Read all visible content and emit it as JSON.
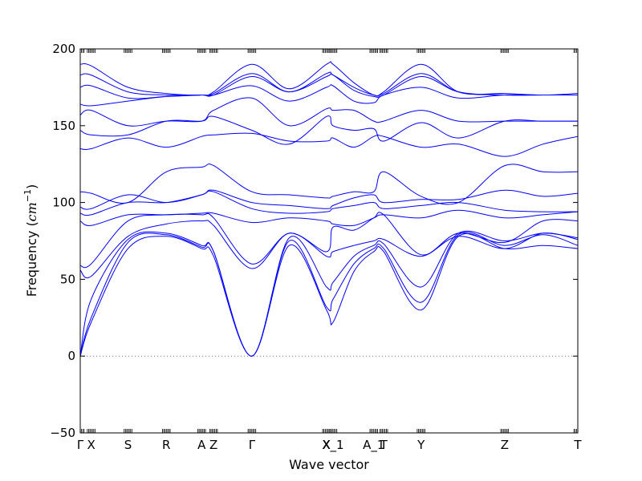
{
  "chart_data": {
    "type": "line",
    "title": "",
    "xlabel": "Wave vector",
    "ylabel": "Frequency",
    "ylabel_unit": "cm",
    "ylabel_unit_exp": "−1",
    "ylim": [
      -50,
      200
    ],
    "yticks": [
      -50,
      0,
      50,
      100,
      150,
      200
    ],
    "ytick_labels": [
      "−50",
      "0",
      "50",
      "100",
      "150",
      "200"
    ],
    "zero_line": true,
    "grid": false,
    "legend": "none",
    "line_color": "#0000ff",
    "zero_line_color": "#777777",
    "xlim": [
      0,
      1
    ],
    "high_symmetry_points": [
      {
        "label": "Γ",
        "x": 0.0
      },
      {
        "label": "X",
        "x": 0.022
      },
      {
        "label": "S",
        "x": 0.096
      },
      {
        "label": "R",
        "x": 0.173
      },
      {
        "label": "A",
        "x": 0.244
      },
      {
        "label": "Z",
        "x": 0.268
      },
      {
        "label": "Γ",
        "x": 0.345
      },
      {
        "label": "X",
        "x": 0.495
      },
      {
        "label": "X_1",
        "x": 0.508
      },
      {
        "label": "A_1",
        "x": 0.59
      },
      {
        "label": "T",
        "x": 0.61
      },
      {
        "label": "Y",
        "x": 0.685
      },
      {
        "label": "Z",
        "x": 0.853
      },
      {
        "label": "T",
        "x": 1.0
      }
    ],
    "series": [
      {
        "x": [
          0,
          0.022,
          0.096,
          0.173,
          0.244,
          0.268,
          0.345,
          0.42,
          0.495,
          0.508,
          0.55,
          0.59,
          0.61,
          0.685,
          0.76,
          0.853,
          0.93,
          1.0
        ],
        "values": [
          0,
          22,
          70,
          78,
          70,
          65,
          0,
          72,
          30,
          22,
          55,
          68,
          68,
          30,
          78,
          70,
          72,
          70
        ]
      },
      {
        "x": [
          0,
          0.022,
          0.096,
          0.173,
          0.244,
          0.268,
          0.345,
          0.42,
          0.495,
          0.508,
          0.55,
          0.59,
          0.61,
          0.685,
          0.76,
          0.853,
          0.93,
          1.0
        ],
        "values": [
          0,
          25,
          74,
          79,
          71,
          68,
          0,
          75,
          32,
          37,
          60,
          70,
          70,
          35,
          79,
          72,
          79,
          72
        ]
      },
      {
        "x": [
          0,
          0.022,
          0.096,
          0.173,
          0.244,
          0.268,
          0.345,
          0.42,
          0.495,
          0.508,
          0.55,
          0.59,
          0.61,
          0.685,
          0.76,
          0.853,
          0.93,
          1.0
        ],
        "values": [
          0,
          37,
          76,
          80,
          72,
          68,
          0,
          77,
          45,
          48,
          65,
          72,
          73,
          45,
          80,
          75,
          80,
          77
        ]
      },
      {
        "x": [
          0,
          0.022,
          0.096,
          0.173,
          0.244,
          0.268,
          0.345,
          0.42,
          0.495,
          0.508,
          0.55,
          0.59,
          0.61,
          0.685,
          0.76,
          0.853,
          0.93,
          1.0
        ],
        "values": [
          56,
          52,
          78,
          86,
          88,
          85,
          57,
          80,
          65,
          68,
          72,
          75,
          76,
          65,
          78,
          70,
          80,
          76
        ]
      },
      {
        "x": [
          0,
          0.022,
          0.096,
          0.173,
          0.244,
          0.268,
          0.345,
          0.42,
          0.495,
          0.508,
          0.55,
          0.59,
          0.61,
          0.685,
          0.76,
          0.853,
          0.93,
          1.0
        ],
        "values": [
          59,
          60,
          88,
          92,
          92,
          90,
          60,
          80,
          68,
          84,
          82,
          90,
          92,
          66,
          80,
          74,
          88,
          88
        ]
      },
      {
        "x": [
          0,
          0.022,
          0.096,
          0.173,
          0.244,
          0.268,
          0.345,
          0.42,
          0.495,
          0.508,
          0.55,
          0.59,
          0.61,
          0.685,
          0.76,
          0.853,
          0.93,
          1.0
        ],
        "values": [
          88,
          85,
          92,
          92,
          93,
          93,
          87,
          90,
          88,
          86,
          85,
          90,
          92,
          90,
          95,
          90,
          92,
          94
        ]
      },
      {
        "x": [
          0,
          0.022,
          0.096,
          0.173,
          0.244,
          0.268,
          0.345,
          0.42,
          0.495,
          0.508,
          0.55,
          0.59,
          0.61,
          0.685,
          0.76,
          0.853,
          0.93,
          1.0
        ],
        "values": [
          93,
          92,
          100,
          100,
          105,
          107,
          96,
          93,
          94,
          96,
          98,
          100,
          96,
          98,
          100,
          95,
          94,
          94
        ]
      },
      {
        "x": [
          0,
          0.022,
          0.096,
          0.173,
          0.244,
          0.268,
          0.345,
          0.42,
          0.495,
          0.508,
          0.55,
          0.59,
          0.61,
          0.685,
          0.76,
          0.853,
          0.93,
          1.0
        ],
        "values": [
          97,
          96,
          105,
          100,
          105,
          108,
          100,
          98,
          96,
          98,
          103,
          105,
          100,
          102,
          102,
          108,
          104,
          106
        ]
      },
      {
        "x": [
          0,
          0.022,
          0.096,
          0.173,
          0.244,
          0.268,
          0.345,
          0.42,
          0.495,
          0.508,
          0.55,
          0.59,
          0.61,
          0.685,
          0.76,
          0.853,
          0.93,
          1.0
        ],
        "values": [
          107,
          106,
          100,
          120,
          123,
          124,
          107,
          105,
          103,
          104,
          107,
          107,
          120,
          104,
          100,
          124,
          120,
          120
        ]
      },
      {
        "x": [
          0,
          0.022,
          0.096,
          0.173,
          0.244,
          0.268,
          0.345,
          0.42,
          0.495,
          0.508,
          0.55,
          0.59,
          0.61,
          0.685,
          0.76,
          0.853,
          0.93,
          1.0
        ],
        "values": [
          135,
          135,
          142,
          136,
          143,
          144,
          145,
          140,
          140,
          142,
          136,
          143,
          143,
          136,
          138,
          130,
          138,
          143
        ]
      },
      {
        "x": [
          0,
          0.022,
          0.096,
          0.173,
          0.244,
          0.268,
          0.345,
          0.42,
          0.495,
          0.508,
          0.55,
          0.59,
          0.61,
          0.685,
          0.76,
          0.853,
          0.93,
          1.0
        ],
        "values": [
          147,
          144,
          144,
          153,
          153,
          156,
          147,
          138,
          156,
          150,
          147,
          148,
          140,
          152,
          142,
          153,
          153,
          153
        ]
      },
      {
        "x": [
          0,
          0.022,
          0.096,
          0.173,
          0.244,
          0.268,
          0.345,
          0.42,
          0.495,
          0.508,
          0.55,
          0.59,
          0.61,
          0.685,
          0.76,
          0.853,
          0.93,
          1.0
        ],
        "values": [
          157,
          160,
          150,
          153,
          153,
          160,
          168,
          150,
          161,
          160,
          160,
          153,
          153,
          160,
          153,
          153,
          153,
          153
        ]
      },
      {
        "x": [
          0,
          0.022,
          0.096,
          0.173,
          0.244,
          0.268,
          0.345,
          0.42,
          0.495,
          0.508,
          0.55,
          0.59,
          0.61,
          0.685,
          0.76,
          0.853,
          0.93,
          1.0
        ],
        "values": [
          164,
          163,
          166,
          169,
          170,
          170,
          176,
          166,
          175,
          176,
          166,
          165,
          170,
          175,
          168,
          170,
          170,
          170
        ]
      },
      {
        "x": [
          0,
          0.022,
          0.096,
          0.173,
          0.244,
          0.268,
          0.345,
          0.42,
          0.495,
          0.508,
          0.55,
          0.59,
          0.61,
          0.685,
          0.76,
          0.853,
          0.93,
          1.0
        ],
        "values": [
          175,
          176,
          168,
          169,
          170,
          170,
          182,
          172,
          182,
          183,
          173,
          169,
          170,
          182,
          172,
          170,
          170,
          170
        ]
      },
      {
        "x": [
          0,
          0.022,
          0.096,
          0.173,
          0.244,
          0.268,
          0.345,
          0.42,
          0.495,
          0.508,
          0.55,
          0.59,
          0.61,
          0.685,
          0.76,
          0.853,
          0.93,
          1.0
        ],
        "values": [
          183,
          183,
          172,
          170,
          170,
          171,
          184,
          172,
          184,
          183,
          175,
          170,
          171,
          184,
          172,
          170,
          170,
          170
        ]
      },
      {
        "x": [
          0,
          0.022,
          0.096,
          0.173,
          0.244,
          0.268,
          0.345,
          0.42,
          0.495,
          0.508,
          0.55,
          0.59,
          0.61,
          0.685,
          0.76,
          0.853,
          0.93,
          1.0
        ],
        "values": [
          190,
          189,
          175,
          171,
          170,
          172,
          190,
          174,
          190,
          190,
          178,
          170,
          172,
          190,
          172,
          171,
          170,
          171
        ]
      }
    ]
  }
}
